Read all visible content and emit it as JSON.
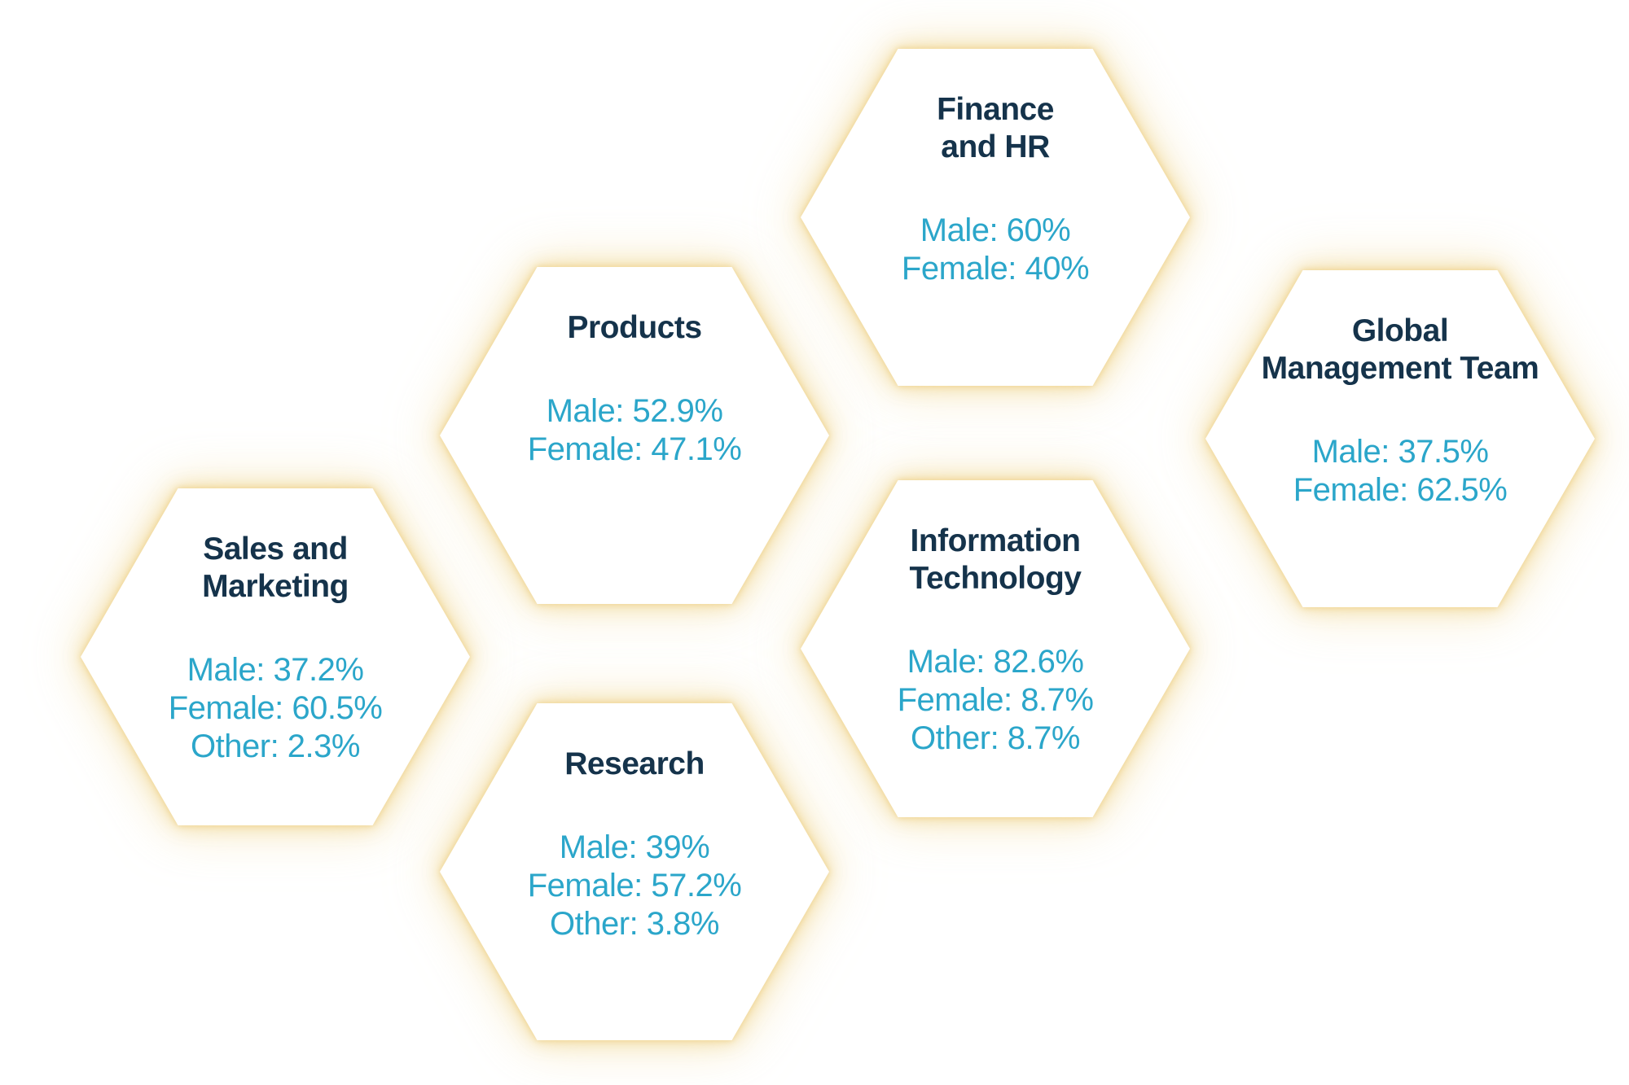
{
  "colors": {
    "title_text": "#15334B",
    "stat_text": "#2BA6CA",
    "hex_fill": "#FFFFFF",
    "glow": "#F2DA9E",
    "background": "#FFFFFF"
  },
  "hexagons": [
    {
      "id": "finance-hr",
      "title": "Finance\nand HR",
      "stats": [
        "Male: 60%",
        "Female: 40%"
      ],
      "breakdown": {
        "male_pct": 60,
        "female_pct": 40
      }
    },
    {
      "id": "products",
      "title": "Products",
      "stats": [
        "Male: 52.9%",
        "Female: 47.1%"
      ],
      "breakdown": {
        "male_pct": 52.9,
        "female_pct": 47.1
      }
    },
    {
      "id": "global-management-team",
      "title": "Global\nManagement Team",
      "stats": [
        "Male: 37.5%",
        "Female: 62.5%"
      ],
      "breakdown": {
        "male_pct": 37.5,
        "female_pct": 62.5
      }
    },
    {
      "id": "sales-and-marketing",
      "title": "Sales and\nMarketing",
      "stats": [
        "Male: 37.2%",
        "Female: 60.5%",
        "Other: 2.3%"
      ],
      "breakdown": {
        "male_pct": 37.2,
        "female_pct": 60.5,
        "other_pct": 2.3
      }
    },
    {
      "id": "information-technology",
      "title": "Information\nTechnology",
      "stats": [
        "Male: 82.6%",
        "Female: 8.7%",
        "Other: 8.7%"
      ],
      "breakdown": {
        "male_pct": 82.6,
        "female_pct": 8.7,
        "other_pct": 8.7
      }
    },
    {
      "id": "research",
      "title": "Research",
      "stats": [
        "Male: 39%",
        "Female: 57.2%",
        "Other: 3.8%"
      ],
      "breakdown": {
        "male_pct": 39,
        "female_pct": 57.2,
        "other_pct": 3.8
      }
    }
  ]
}
